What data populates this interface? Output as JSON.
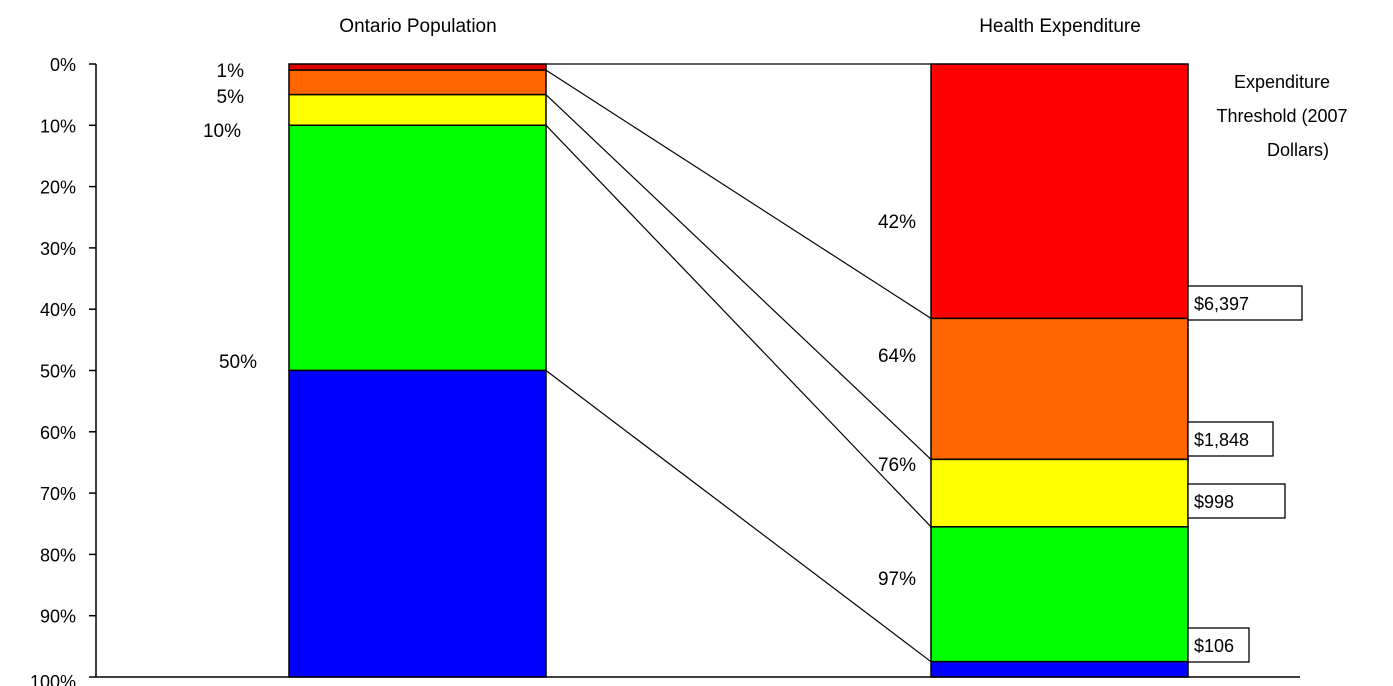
{
  "chart_data": {
    "type": "stacked-bar-comparison",
    "yaxis": {
      "ticks": [
        "0%",
        "10%",
        "20%",
        "30%",
        "40%",
        "50%",
        "60%",
        "70%",
        "80%",
        "90%",
        "100%"
      ],
      "range": [
        0,
        100
      ],
      "inverted": true
    },
    "bars": [
      {
        "title": "Ontario Population",
        "segments": [
          {
            "from": 0,
            "to": 1,
            "color": "#e00000"
          },
          {
            "from": 1,
            "to": 5,
            "color": "#ff6600"
          },
          {
            "from": 5,
            "to": 10,
            "color": "#ffff00"
          },
          {
            "from": 10,
            "to": 50,
            "color": "#00ff00"
          },
          {
            "from": 50,
            "to": 100,
            "color": "#0000ff"
          }
        ],
        "boundary_labels": [
          {
            "at": 1,
            "text": "1%"
          },
          {
            "at": 5,
            "text": "5%"
          },
          {
            "at": 10,
            "text": "10%"
          },
          {
            "at": 50,
            "text": "50%"
          }
        ]
      },
      {
        "title": "Health Expenditure",
        "segments": [
          {
            "from": 0,
            "to": 41.5,
            "color": "#ff0000"
          },
          {
            "from": 41.5,
            "to": 64.5,
            "color": "#ff6600"
          },
          {
            "from": 64.5,
            "to": 75.5,
            "color": "#ffff00"
          },
          {
            "from": 75.5,
            "to": 97.5,
            "color": "#00ff00"
          },
          {
            "from": 97.5,
            "to": 100,
            "color": "#0000ff"
          }
        ],
        "boundary_labels": [
          {
            "at": 41.5,
            "text": "42%"
          },
          {
            "at": 64.5,
            "text": "64%"
          },
          {
            "at": 75.5,
            "text": "76%"
          },
          {
            "at": 97.5,
            "text": "97%"
          }
        ]
      }
    ],
    "connectors": [
      {
        "from": 1,
        "to": 41.5
      },
      {
        "from": 5,
        "to": 64.5
      },
      {
        "from": 10,
        "to": 75.5
      },
      {
        "from": 50,
        "to": 97.5
      }
    ],
    "threshold_header": [
      "Expenditure",
      "Threshold (2007",
      "Dollars)"
    ],
    "thresholds": [
      {
        "at": 41.5,
        "text": "$6,397"
      },
      {
        "at": 64.5,
        "text": "$1,848"
      },
      {
        "at": 75.5,
        "text": "$998"
      },
      {
        "at": 97.5,
        "text": "$106"
      }
    ]
  }
}
